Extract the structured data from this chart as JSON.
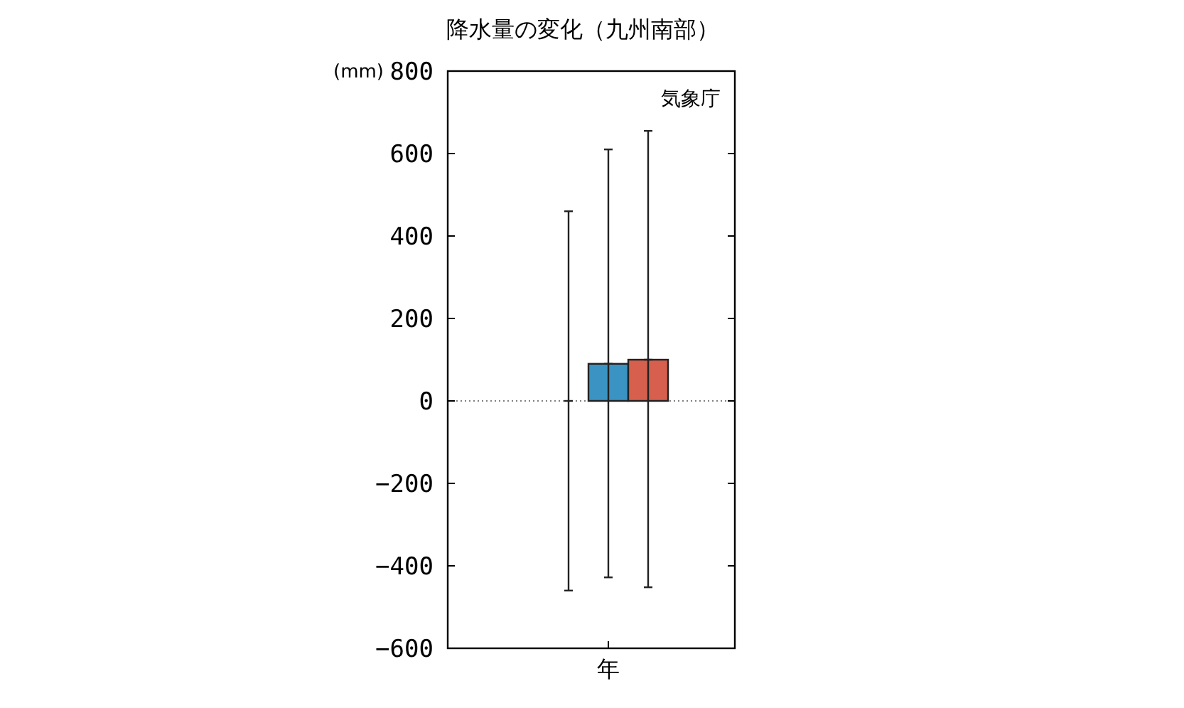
{
  "chart_data": {
    "type": "bar",
    "title": "降水量の変化（九州南部）",
    "ylabel": "(mm)",
    "categories": [
      "年"
    ],
    "series": [
      {
        "color": "#999999",
        "values": [
          0
        ],
        "errors": [
          [
            -460,
            460
          ]
        ]
      },
      {
        "color": "#3a93c3",
        "values": [
          90
        ],
        "errors": [
          [
            -428,
            610
          ]
        ]
      },
      {
        "color": "#d6604d",
        "values": [
          100
        ],
        "errors": [
          [
            -452,
            655
          ]
        ]
      }
    ],
    "ylim": [
      -600,
      800
    ],
    "yticks": [
      -600,
      -400,
      -200,
      0,
      200,
      400,
      600,
      800
    ],
    "ref_lines": [
      {
        "axis": "y",
        "value": 0,
        "line_style": "dotted",
        "color": "#555555"
      }
    ],
    "annotations": [
      "気象庁"
    ],
    "grid": false
  }
}
